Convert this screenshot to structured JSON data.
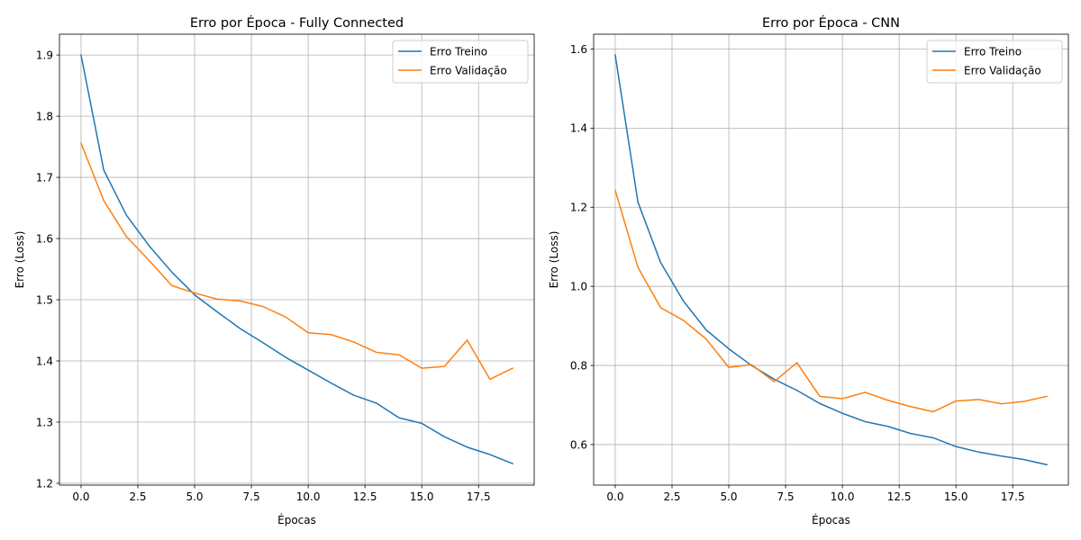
{
  "chart_data": [
    {
      "type": "line",
      "title": "Erro por Época - Fully Connected",
      "xlabel": "Épocas",
      "ylabel": "Erro (Loss)",
      "xlim": [
        -0.95,
        19.95
      ],
      "ylim": [
        1.197,
        1.934
      ],
      "xticks": [
        0.0,
        2.5,
        5.0,
        7.5,
        10.0,
        12.5,
        15.0,
        17.5
      ],
      "xtick_labels": [
        "0.0",
        "2.5",
        "5.0",
        "7.5",
        "10.0",
        "12.5",
        "15.0",
        "17.5"
      ],
      "yticks": [
        1.2,
        1.3,
        1.4,
        1.5,
        1.6,
        1.7,
        1.8,
        1.9
      ],
      "ytick_labels": [
        "1.2",
        "1.3",
        "1.4",
        "1.5",
        "1.6",
        "1.7",
        "1.8",
        "1.9"
      ],
      "grid": true,
      "legend_position": "top-right",
      "x": [
        0,
        1,
        2,
        3,
        4,
        5,
        6,
        7,
        8,
        9,
        10,
        11,
        12,
        13,
        14,
        15,
        16,
        17,
        18,
        19
      ],
      "series": [
        {
          "name": "Erro Treino",
          "color": "#1f77b4",
          "values": [
            1.9,
            1.712,
            1.638,
            1.588,
            1.545,
            1.508,
            1.48,
            1.453,
            1.43,
            1.406,
            1.385,
            1.364,
            1.344,
            1.331,
            1.307,
            1.298,
            1.276,
            1.259,
            1.247,
            1.232
          ]
        },
        {
          "name": "Erro Validação",
          "color": "#ff7f0e",
          "values": [
            1.756,
            1.662,
            1.603,
            1.564,
            1.523,
            1.511,
            1.501,
            1.498,
            1.489,
            1.472,
            1.446,
            1.443,
            1.431,
            1.414,
            1.41,
            1.388,
            1.391,
            1.434,
            1.37,
            1.388
          ]
        }
      ]
    },
    {
      "type": "line",
      "title": "Erro por Época - CNN",
      "xlabel": "Épocas",
      "ylabel": "Erro (Loss)",
      "xlim": [
        -0.95,
        19.95
      ],
      "ylim": [
        0.4975,
        1.6375
      ],
      "xticks": [
        0.0,
        2.5,
        5.0,
        7.5,
        10.0,
        12.5,
        15.0,
        17.5
      ],
      "xtick_labels": [
        "0.0",
        "2.5",
        "5.0",
        "7.5",
        "10.0",
        "12.5",
        "15.0",
        "17.5"
      ],
      "yticks": [
        0.6,
        0.8,
        1.0,
        1.2,
        1.4,
        1.6
      ],
      "ytick_labels": [
        "0.6",
        "0.8",
        "1.0",
        "1.2",
        "1.4",
        "1.6"
      ],
      "grid": true,
      "legend_position": "top-right",
      "x": [
        0,
        1,
        2,
        3,
        4,
        5,
        6,
        7,
        8,
        9,
        10,
        11,
        12,
        13,
        14,
        15,
        16,
        17,
        18,
        19
      ],
      "series": [
        {
          "name": "Erro Treino",
          "color": "#1f77b4",
          "values": [
            1.585,
            1.213,
            1.06,
            0.963,
            0.89,
            0.842,
            0.8,
            0.765,
            0.737,
            0.704,
            0.679,
            0.658,
            0.646,
            0.628,
            0.617,
            0.595,
            0.581,
            0.571,
            0.562,
            0.549
          ]
        },
        {
          "name": "Erro Validação",
          "color": "#ff7f0e",
          "values": [
            1.243,
            1.048,
            0.946,
            0.914,
            0.867,
            0.795,
            0.802,
            0.759,
            0.807,
            0.722,
            0.716,
            0.732,
            0.712,
            0.696,
            0.683,
            0.71,
            0.714,
            0.703,
            0.709,
            0.722
          ]
        }
      ]
    }
  ]
}
